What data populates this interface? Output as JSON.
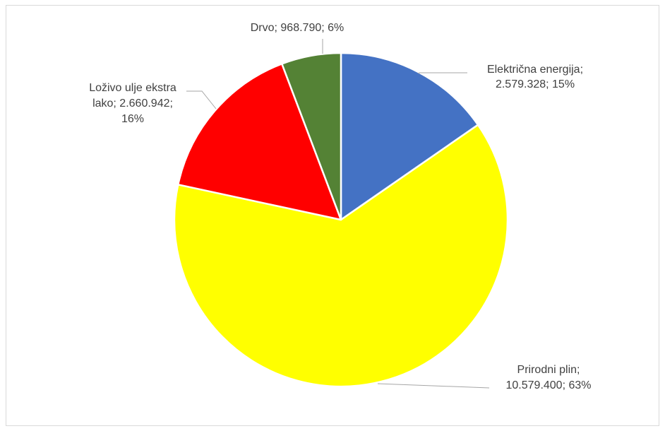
{
  "chart_data": {
    "type": "pie",
    "start_angle_deg": 0,
    "direction": "clockwise",
    "legend": "none",
    "slices": [
      {
        "label": "Električna energija",
        "value": 2579328,
        "percent": 15,
        "color": "#4472c4",
        "label_lines": [
          "Električna energija;",
          "2.579.328; 15%"
        ]
      },
      {
        "label": "Prirodni plin",
        "value": 10579400,
        "percent": 63,
        "color": "#ffff00",
        "label_lines": [
          "Prirodni plin;",
          "10.579.400; 63%"
        ]
      },
      {
        "label": "Loživo ulje ekstra lako",
        "value": 2660942,
        "percent": 16,
        "color": "#ff0000",
        "label_lines": [
          "Loživo ulje ekstra",
          "lako; 2.660.942;",
          "16%"
        ]
      },
      {
        "label": "Drvo",
        "value": 968790,
        "percent": 6,
        "color": "#548235",
        "label_lines": [
          "Drvo; 968.790; 6%"
        ]
      }
    ]
  }
}
